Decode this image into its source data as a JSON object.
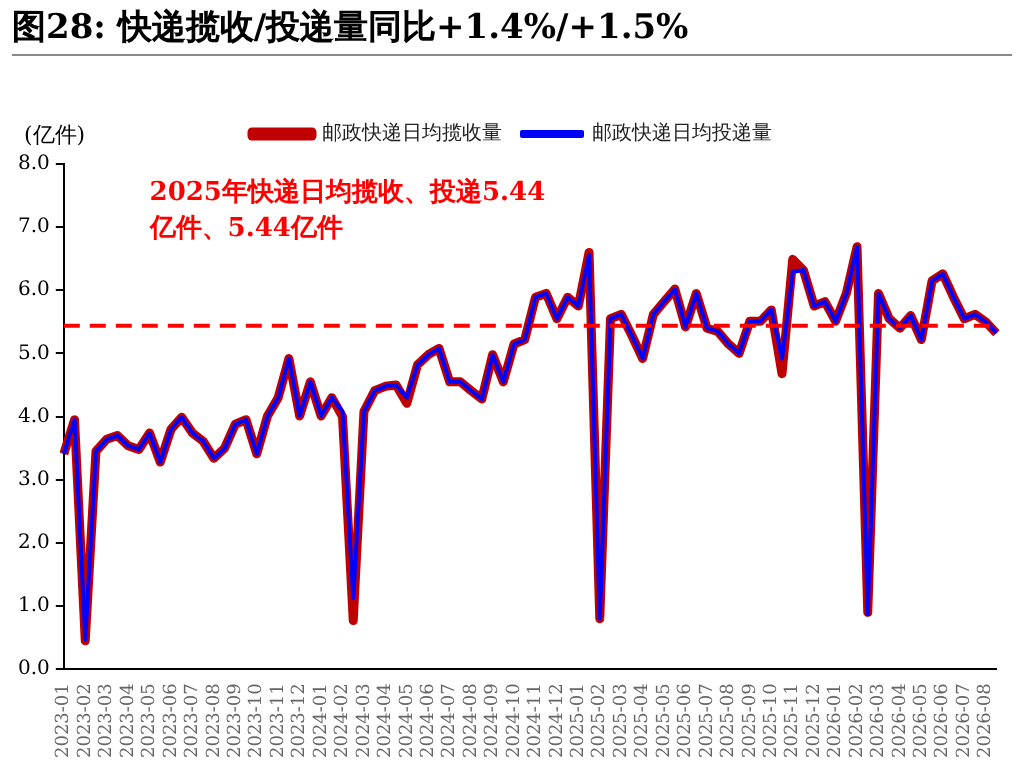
{
  "chart_data": {
    "type": "line",
    "title": "图28:  快递揽收/投递量同比+1.4%/+1.5%",
    "ylabel": "(亿件)",
    "categories": [
      "2023-01",
      null,
      "2023-02",
      null,
      "2023-03",
      null,
      "2023-04",
      null,
      "2023-05",
      null,
      "2023-06",
      null,
      "2023-07",
      null,
      "2023-08",
      null,
      "2023-09",
      null,
      "2023-10",
      null,
      "2023-11",
      null,
      "2023-12",
      null,
      "2024-01",
      null,
      "2024-02",
      null,
      "2024-03",
      null,
      "2024-04",
      null,
      "2024-05",
      null,
      "2024-06",
      null,
      "2024-07",
      null,
      "2024-08",
      null,
      "2024-09",
      null,
      "2024-10",
      null,
      "2024-11",
      null,
      "2024-12",
      null,
      "2025-01",
      null,
      "2025-02",
      null,
      "2025-03",
      null,
      "2025-04",
      null,
      "2025-05",
      null,
      "2025-06",
      null,
      "2025-07",
      null,
      "2025-08",
      null,
      "2025-09",
      null,
      "2025-10",
      null,
      "2025-11",
      null,
      "2025-12",
      null,
      "2026-01",
      null,
      "2026-02",
      null,
      "2026-03",
      null,
      "2026-04",
      null,
      "2026-05",
      null,
      "2026-06",
      null,
      "2026-07",
      null,
      "2026-08",
      null
    ],
    "series": [
      {
        "name": "邮政快递日均揽收量",
        "color": "#c00000",
        "values": [
          3.41,
          3.95,
          0.45,
          3.45,
          3.64,
          3.7,
          3.54,
          3.48,
          3.74,
          3.28,
          3.8,
          3.99,
          3.74,
          3.61,
          3.34,
          3.5,
          3.88,
          3.95,
          3.41,
          4.01,
          4.3,
          4.92,
          4.01,
          4.55,
          4.01,
          4.3,
          4.0,
          0.77,
          4.08,
          4.41,
          4.48,
          4.5,
          4.21,
          4.82,
          4.98,
          5.08,
          4.55,
          4.55,
          4.41,
          4.28,
          4.98,
          4.55,
          5.15,
          5.22,
          5.89,
          5.95,
          5.55,
          5.89,
          5.75,
          6.6,
          0.8,
          5.55,
          5.62,
          5.28,
          4.92,
          5.62,
          5.82,
          6.02,
          5.42,
          5.95,
          5.4,
          5.35,
          5.15,
          5.0,
          5.51,
          5.51,
          5.69,
          4.68,
          6.49,
          6.32,
          5.75,
          5.82,
          5.51,
          5.95,
          6.69,
          0.9,
          5.95,
          5.55,
          5.4,
          5.6,
          5.22,
          6.15,
          6.26,
          5.89,
          5.55,
          5.62,
          5.5,
          5.32
        ]
      },
      {
        "name": "邮政快递日均投递量",
        "color": "#0000ff",
        "values": [
          3.41,
          3.95,
          0.47,
          3.45,
          3.64,
          3.7,
          3.54,
          3.48,
          3.74,
          3.28,
          3.8,
          3.99,
          3.74,
          3.61,
          3.34,
          3.5,
          3.88,
          3.95,
          3.41,
          4.01,
          4.3,
          4.92,
          4.01,
          4.55,
          4.01,
          4.3,
          4.08,
          1.13,
          4.08,
          4.41,
          4.48,
          4.5,
          4.3,
          4.82,
          4.98,
          5.08,
          4.55,
          4.55,
          4.41,
          4.28,
          4.98,
          4.55,
          5.15,
          5.22,
          5.89,
          5.95,
          5.55,
          5.89,
          5.75,
          6.56,
          0.8,
          5.55,
          5.62,
          5.28,
          4.92,
          5.62,
          5.82,
          6.02,
          5.42,
          5.95,
          5.4,
          5.35,
          5.15,
          5.0,
          5.51,
          5.51,
          5.69,
          4.92,
          6.29,
          6.32,
          5.75,
          5.82,
          5.51,
          5.95,
          6.69,
          0.87,
          5.95,
          5.55,
          5.4,
          5.6,
          5.22,
          6.15,
          6.26,
          5.89,
          5.55,
          5.62,
          5.5,
          5.32
        ]
      }
    ],
    "ylim": [
      0,
      8
    ],
    "yticks": [
      {
        "value": 0,
        "label": "0.0"
      },
      {
        "value": 1,
        "label": "1.0"
      },
      {
        "value": 2,
        "label": "2.0"
      },
      {
        "value": 3,
        "label": "3.0"
      },
      {
        "value": 4,
        "label": "4.0"
      },
      {
        "value": 5,
        "label": "5.0"
      },
      {
        "value": 6,
        "label": "6.0"
      },
      {
        "value": 7,
        "label": "7.0"
      },
      {
        "value": 8,
        "label": "8.0"
      }
    ],
    "ref_lines": [
      {
        "axis": "y",
        "value": 5.44,
        "color": "#ff0000",
        "line_style": "dashed"
      }
    ],
    "annotations": [
      "2025年快递日均揽收、投递5.44亿件、5.44亿件"
    ],
    "grid": false,
    "legend": "top",
    "marker": "none",
    "line_style": "solid"
  }
}
